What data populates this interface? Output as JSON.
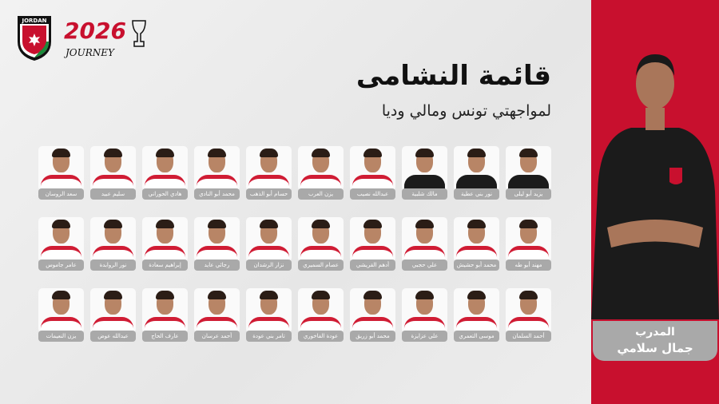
{
  "branding": {
    "federation_logo_text": "JORDAN",
    "campaign_logo_text": "2026",
    "campaign_logo_script": "JOURNEY",
    "colors": {
      "red": "#c8102e",
      "black": "#111111",
      "green": "#1a8a3a"
    }
  },
  "header": {
    "title": "قائمة النشامى",
    "subtitle": "لمواجهتي تونس ومالي وديا"
  },
  "players": [
    {
      "name": "يزيد أبو ليلى",
      "kit": "goalkeeper"
    },
    {
      "name": "نور بني عطية",
      "kit": "goalkeeper"
    },
    {
      "name": "مالك شلبية",
      "kit": "goalkeeper"
    },
    {
      "name": "عبدالله نصيب",
      "kit": "home"
    },
    {
      "name": "يزن العرب",
      "kit": "home"
    },
    {
      "name": "حسام أبو الذهب",
      "kit": "home"
    },
    {
      "name": "محمد أبو النادي",
      "kit": "home"
    },
    {
      "name": "هادي الحوراني",
      "kit": "home"
    },
    {
      "name": "سليم عبيد",
      "kit": "home"
    },
    {
      "name": "سعد الروسان",
      "kit": "home"
    },
    {
      "name": "مهند أبو طه",
      "kit": "home"
    },
    {
      "name": "محمد أبو حشيش",
      "kit": "home"
    },
    {
      "name": "علي حجبي",
      "kit": "home"
    },
    {
      "name": "أدهم القريشي",
      "kit": "home"
    },
    {
      "name": "عصام السميري",
      "kit": "home"
    },
    {
      "name": "نزار الرشدان",
      "kit": "home"
    },
    {
      "name": "رجائي عايد",
      "kit": "home"
    },
    {
      "name": "إبراهيم سعادة",
      "kit": "home"
    },
    {
      "name": "نور الروابدة",
      "kit": "home"
    },
    {
      "name": "عامر جاموس",
      "kit": "home"
    },
    {
      "name": "أحمد السلمان",
      "kit": "home"
    },
    {
      "name": "موسى التعمري",
      "kit": "home"
    },
    {
      "name": "علي عزايزة",
      "kit": "home"
    },
    {
      "name": "محمد أبو زريق",
      "kit": "home"
    },
    {
      "name": "عودة الفاخوري",
      "kit": "home"
    },
    {
      "name": "تامر بني عودة",
      "kit": "home"
    },
    {
      "name": "أحمد عرسان",
      "kit": "home"
    },
    {
      "name": "عارف الحاج",
      "kit": "home"
    },
    {
      "name": "عبدالله عوض",
      "kit": "home"
    },
    {
      "name": "يزن النعيمات",
      "kit": "home"
    }
  ],
  "coach": {
    "role": "المدرب",
    "name": "جمال سلامي"
  }
}
